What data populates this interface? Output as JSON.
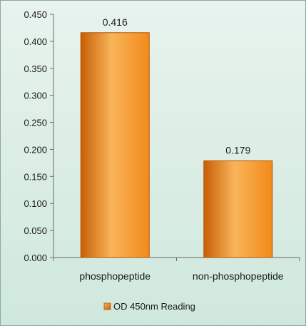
{
  "chart_data": {
    "type": "bar",
    "categories": [
      "phosphopeptide",
      "non-phosphopeptide"
    ],
    "series": [
      {
        "name": "OD 450nm Reading",
        "values": [
          0.416,
          0.179
        ]
      }
    ],
    "data_labels": [
      "0.416",
      "0.179"
    ],
    "y_ticks": [
      "0.000",
      "0.050",
      "0.100",
      "0.150",
      "0.200",
      "0.250",
      "0.300",
      "0.350",
      "0.400",
      "0.450"
    ],
    "ylim": [
      0,
      0.45
    ],
    "title": "",
    "xlabel": "",
    "ylabel": "",
    "grid": false,
    "legend_position": "bottom",
    "colors": {
      "bar_light": "#f9b45a",
      "bar_mid": "#f28a1a",
      "bar_dark": "#c75f06",
      "bar_edge": "#b35400",
      "axis": "#6a6a6a"
    }
  }
}
